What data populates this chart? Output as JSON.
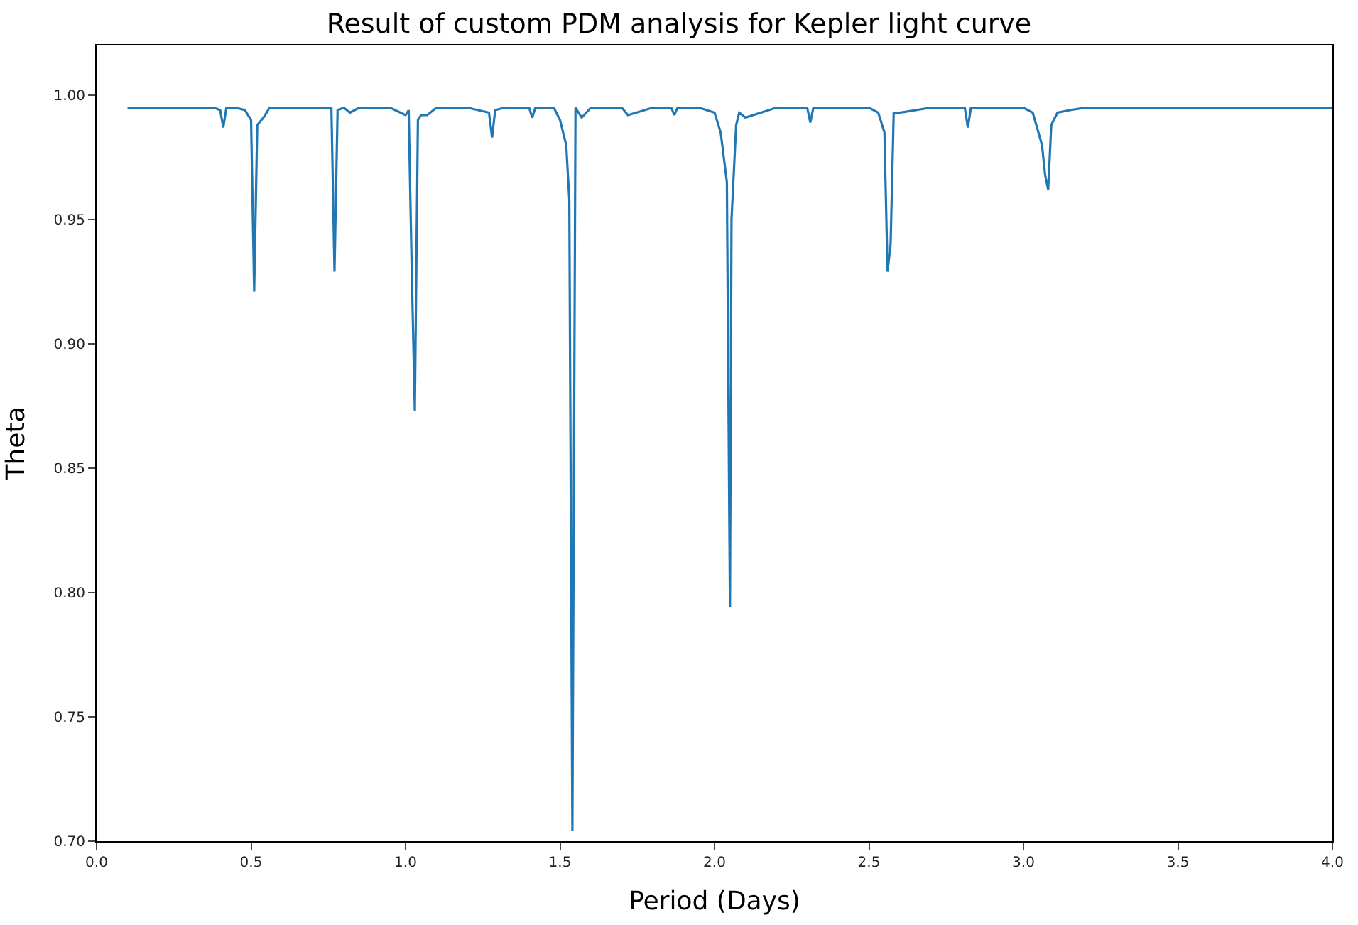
{
  "chart_data": {
    "type": "line",
    "title": "Result of custom PDM analysis for Kepler light curve",
    "xlabel": "Period (Days)",
    "ylabel": "Theta",
    "x": [
      0.1,
      0.2,
      0.25,
      0.3,
      0.38,
      0.4,
      0.41,
      0.42,
      0.45,
      0.48,
      0.5,
      0.51,
      0.52,
      0.54,
      0.56,
      0.6,
      0.7,
      0.76,
      0.77,
      0.78,
      0.8,
      0.82,
      0.85,
      0.9,
      0.95,
      1.0,
      1.01,
      1.02,
      1.03,
      1.04,
      1.05,
      1.07,
      1.1,
      1.2,
      1.27,
      1.28,
      1.29,
      1.32,
      1.4,
      1.41,
      1.42,
      1.48,
      1.5,
      1.52,
      1.53,
      1.54,
      1.55,
      1.57,
      1.6,
      1.7,
      1.72,
      1.8,
      1.86,
      1.87,
      1.88,
      1.95,
      2.0,
      2.02,
      2.04,
      2.05,
      2.055,
      2.07,
      2.08,
      2.1,
      2.2,
      2.3,
      2.31,
      2.32,
      2.4,
      2.5,
      2.53,
      2.55,
      2.56,
      2.57,
      2.58,
      2.6,
      2.7,
      2.8,
      2.81,
      2.82,
      2.83,
      2.9,
      3.0,
      3.03,
      3.06,
      3.07,
      3.08,
      3.09,
      3.11,
      3.15,
      3.2,
      3.3,
      3.5,
      3.7,
      3.9,
      4.0
    ],
    "series": [
      {
        "color": "#1f77b4",
        "values": [
          0.995,
          0.995,
          0.995,
          0.995,
          0.995,
          0.994,
          0.987,
          0.995,
          0.995,
          0.994,
          0.99,
          0.921,
          0.988,
          0.991,
          0.995,
          0.995,
          0.995,
          0.995,
          0.929,
          0.994,
          0.995,
          0.993,
          0.995,
          0.995,
          0.995,
          0.992,
          0.994,
          0.93,
          0.873,
          0.99,
          0.992,
          0.992,
          0.995,
          0.995,
          0.993,
          0.983,
          0.994,
          0.995,
          0.995,
          0.991,
          0.995,
          0.995,
          0.99,
          0.98,
          0.958,
          0.704,
          0.995,
          0.991,
          0.995,
          0.995,
          0.992,
          0.995,
          0.995,
          0.992,
          0.995,
          0.995,
          0.993,
          0.985,
          0.965,
          0.794,
          0.95,
          0.988,
          0.993,
          0.991,
          0.995,
          0.995,
          0.989,
          0.995,
          0.995,
          0.995,
          0.993,
          0.985,
          0.929,
          0.94,
          0.993,
          0.993,
          0.995,
          0.995,
          0.995,
          0.987,
          0.995,
          0.995,
          0.995,
          0.993,
          0.98,
          0.968,
          0.962,
          0.988,
          0.993,
          0.994,
          0.995,
          0.995,
          0.995,
          0.995,
          0.995,
          0.995
        ]
      }
    ],
    "xlim": [
      0.0,
      4.0
    ],
    "xticks": [
      {
        "value": 0,
        "label": "0.0"
      },
      0.5,
      {
        "value": 1,
        "label": "1.0"
      },
      1.5,
      {
        "value": 2,
        "label": "2.0"
      },
      2.5,
      {
        "value": 3,
        "label": "3.0"
      },
      3.5,
      {
        "value": 4,
        "label": "4.0"
      }
    ],
    "ylim": [
      0.7,
      1.02
    ],
    "yticks": [
      {
        "value": 0.7,
        "label": "0.70"
      },
      0.75,
      {
        "value": 0.8,
        "label": "0.80"
      },
      0.85,
      {
        "value": 0.9,
        "label": "0.90"
      },
      0.95,
      {
        "value": 1.0,
        "label": "1.00"
      }
    ],
    "marker": "none"
  }
}
